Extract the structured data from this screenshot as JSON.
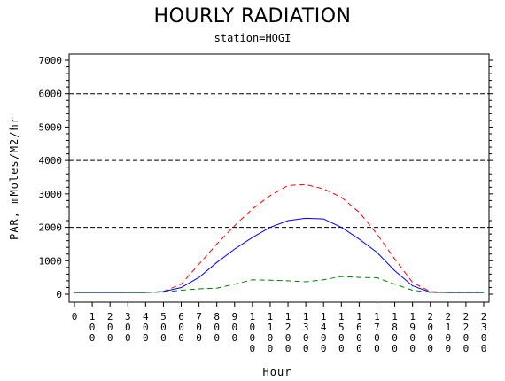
{
  "chart_data": {
    "type": "line",
    "title": "HOURLY RADIATION",
    "subtitle": "station=HOGI",
    "xlabel": "Hour",
    "ylabel": "PAR, mMoles/M2/hr",
    "xlim": [
      0,
      2300
    ],
    "ylim": [
      0,
      7000
    ],
    "yticks": [
      0,
      1000,
      2000,
      3000,
      4000,
      5000,
      6000,
      7000
    ],
    "xticks": [
      0,
      100,
      200,
      300,
      400,
      500,
      600,
      700,
      800,
      900,
      1000,
      1100,
      1200,
      1300,
      1400,
      1500,
      1600,
      1700,
      1800,
      1900,
      2000,
      2100,
      2200,
      2300
    ],
    "reference_lines": [
      2000,
      4000,
      6000
    ],
    "grid": false,
    "series": [
      {
        "color": "#ff0000",
        "style": "dashed",
        "x": [
          0,
          100,
          200,
          300,
          400,
          500,
          600,
          700,
          800,
          900,
          1000,
          1100,
          1200,
          1300,
          1400,
          1500,
          1600,
          1700,
          1800,
          1900,
          2000,
          2100,
          2200,
          2300
        ],
        "y": [
          50,
          50,
          50,
          50,
          50,
          80,
          300,
          900,
          1500,
          2050,
          2550,
          2950,
          3250,
          3280,
          3150,
          2900,
          2450,
          1800,
          1050,
          350,
          80,
          50,
          50,
          50
        ]
      },
      {
        "color": "#0000ff",
        "style": "solid",
        "x": [
          0,
          100,
          200,
          300,
          400,
          500,
          600,
          700,
          800,
          900,
          1000,
          1100,
          1200,
          1300,
          1400,
          1500,
          1600,
          1700,
          1800,
          1900,
          2000,
          2100,
          2200,
          2300
        ],
        "y": [
          50,
          50,
          50,
          50,
          50,
          80,
          200,
          500,
          950,
          1350,
          1700,
          2000,
          2200,
          2270,
          2250,
          2000,
          1650,
          1250,
          700,
          250,
          60,
          50,
          50,
          50
        ]
      },
      {
        "color": "#008000",
        "style": "dashed",
        "x": [
          0,
          100,
          200,
          300,
          400,
          500,
          600,
          700,
          800,
          900,
          1000,
          1100,
          1200,
          1300,
          1400,
          1500,
          1600,
          1700,
          1800,
          1900,
          2000,
          2100,
          2200,
          2300
        ],
        "y": [
          50,
          50,
          50,
          50,
          50,
          60,
          120,
          160,
          180,
          300,
          430,
          420,
          400,
          370,
          430,
          530,
          500,
          490,
          300,
          120,
          50,
          50,
          50,
          50
        ]
      }
    ]
  }
}
